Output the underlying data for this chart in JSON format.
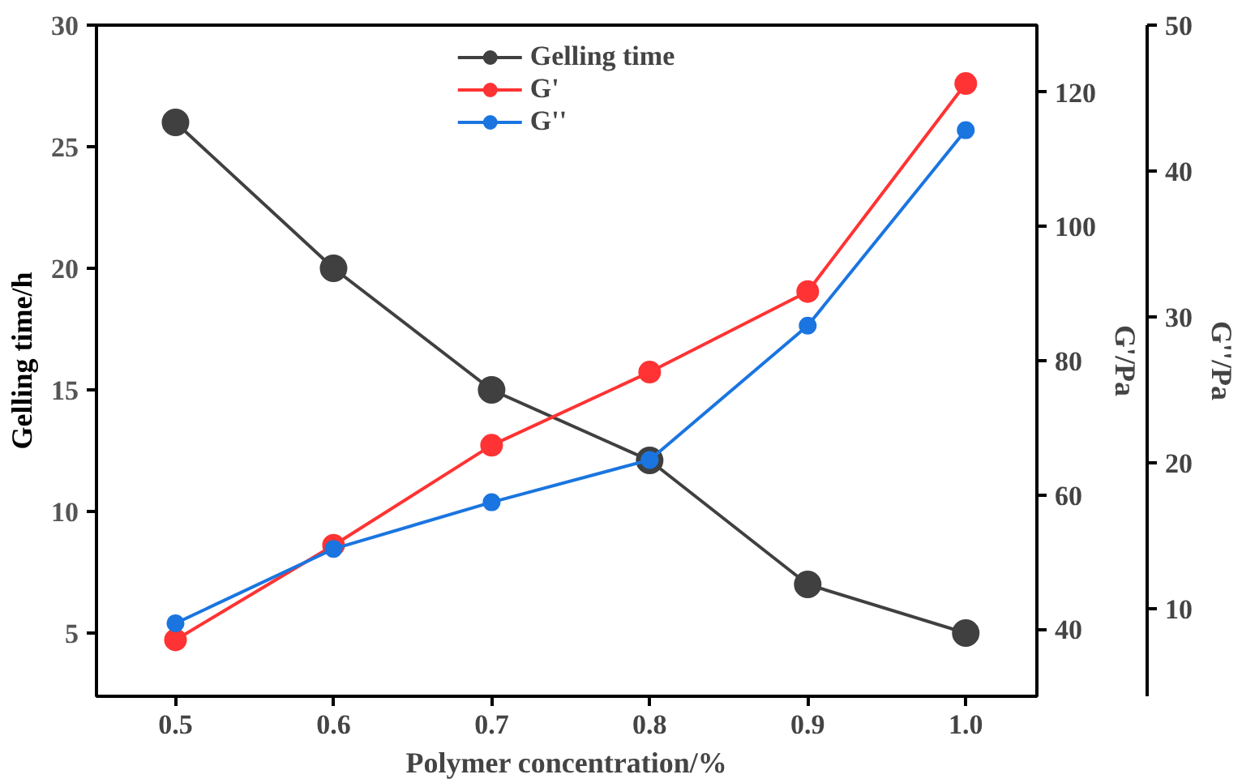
{
  "chart_data": {
    "type": "line",
    "xlabel": "Polymer concentration/%",
    "ylabel": "Gelling time/h",
    "y2label": "G'/Pa",
    "y3label": "G''/Pa",
    "x": [
      0.5,
      0.6,
      0.7,
      0.8,
      0.9,
      1.0
    ],
    "xlim": [
      0.45,
      1.045
    ],
    "xticks": [
      0.5,
      0.6,
      0.7,
      0.8,
      0.9,
      {
        "value": 1.0,
        "label": "1.0"
      }
    ],
    "ylim": [
      2.4,
      30
    ],
    "yticks": [
      5,
      10,
      15,
      20,
      25,
      30
    ],
    "y2lim": [
      30,
      130
    ],
    "y2ticks": [
      40,
      60,
      80,
      100,
      120
    ],
    "y3lim": [
      4,
      50
    ],
    "y3ticks": [
      10,
      20,
      30,
      40,
      50
    ],
    "series": [
      {
        "name": "Gelling time",
        "color": "#404040",
        "values": [
          26,
          20,
          15,
          12.1,
          7,
          5
        ]
      },
      {
        "name": "G'",
        "color": "#ff3333",
        "axis": "y2",
        "values": [
          38.4,
          52.5,
          67.4,
          78.3,
          90.3,
          121.3
        ]
      },
      {
        "name": "G''",
        "color": "#1a75e0",
        "axis": "y3",
        "values": [
          9,
          14.1,
          17.3,
          20.2,
          29.4,
          42.8
        ]
      }
    ],
    "marker": "circle",
    "grid": false,
    "legend": "top"
  }
}
